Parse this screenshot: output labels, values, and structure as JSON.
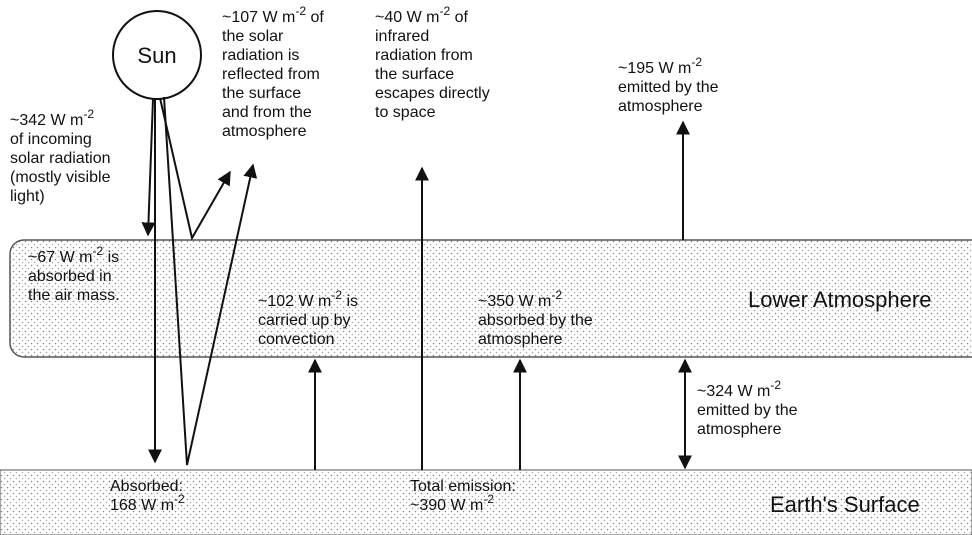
{
  "sun": "Sun",
  "labels": [
    {
      "lines": [
        [
          {
            "t": "~342 W m"
          },
          {
            "sup": "-2"
          }
        ],
        [
          "of incoming"
        ],
        [
          "solar radiation"
        ],
        [
          "(mostly visible"
        ],
        [
          "light)"
        ]
      ]
    },
    {
      "lines": [
        [
          {
            "t": "~107 W m"
          },
          {
            "sup": "-2"
          },
          {
            "t": " of"
          }
        ],
        [
          "the solar"
        ],
        [
          "radiation is"
        ],
        [
          "reflected from"
        ],
        [
          "the surface"
        ],
        [
          "and from the"
        ],
        [
          "atmosphere"
        ]
      ]
    },
    {
      "lines": [
        [
          {
            "t": "~40 W m"
          },
          {
            "sup": "-2"
          },
          {
            "t": " of"
          }
        ],
        [
          "infrared"
        ],
        [
          "radiation from"
        ],
        [
          "the surface"
        ],
        [
          "escapes directly"
        ],
        [
          "to space"
        ]
      ]
    },
    {
      "lines": [
        [
          {
            "t": "~195 W m"
          },
          {
            "sup": "-2"
          }
        ],
        [
          "emitted by  the"
        ],
        [
          "atmosphere"
        ]
      ]
    },
    {
      "lines": [
        [
          {
            "t": "~67 W m"
          },
          {
            "sup": "-2"
          },
          {
            "t": " is"
          }
        ],
        [
          "absorbed in"
        ],
        [
          "the air mass."
        ]
      ]
    },
    {
      "lines": [
        [
          {
            "t": "~102 W m"
          },
          {
            "sup": "-2"
          },
          {
            "t": " is"
          }
        ],
        [
          "carried up by"
        ],
        [
          "convection"
        ]
      ]
    },
    {
      "lines": [
        [
          {
            "t": "~350 W m"
          },
          {
            "sup": "-2"
          }
        ],
        [
          "absorbed by the"
        ],
        [
          "atmosphere"
        ]
      ]
    },
    {
      "lines": [
        [
          {
            "t": "~324 W m"
          },
          {
            "sup": "-2"
          }
        ],
        [
          "emitted by the"
        ],
        [
          "atmosphere"
        ]
      ]
    },
    {
      "lines": [
        [
          "Absorbed:"
        ],
        [
          {
            "t": "168 W m"
          },
          {
            "sup": "-2"
          }
        ]
      ]
    },
    {
      "lines": [
        [
          "Total emission:"
        ],
        [
          {
            "t": "~390 W m"
          },
          {
            "sup": "-2"
          }
        ]
      ]
    }
  ],
  "layers": {
    "atmosphere": "Lower Atmosphere",
    "surface": "Earth's Surface"
  }
}
